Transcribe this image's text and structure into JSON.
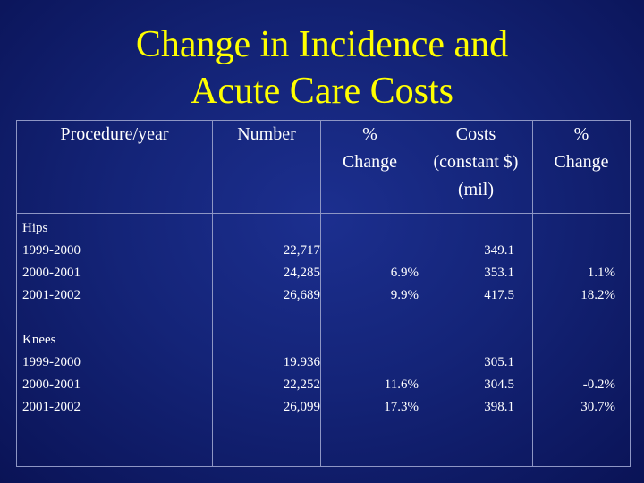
{
  "slide": {
    "title_line1": "Change in Incidence and",
    "title_line2": "Acute Care Costs"
  },
  "table": {
    "headers": {
      "procedure": "Procedure/year",
      "number": "Number",
      "pct_change_1_a": "%",
      "pct_change_1_b": "Change",
      "costs_a": "Costs",
      "costs_b": "(constant $)",
      "costs_c": "(mil)",
      "pct_change_2_a": "%",
      "pct_change_2_b": "Change"
    },
    "groups": [
      {
        "name": "Hips",
        "rows": [
          {
            "year": "1999-2000",
            "number": "22,717",
            "pct_number": "",
            "cost": "349.1",
            "pct_cost": ""
          },
          {
            "year": "2000-2001",
            "number": "24,285",
            "pct_number": "6.9%",
            "cost": "353.1",
            "pct_cost": "1.1%"
          },
          {
            "year": "2001-2002",
            "number": "26,689",
            "pct_number": "9.9%",
            "cost": "417.5",
            "pct_cost": "18.2%"
          }
        ]
      },
      {
        "name": "Knees",
        "rows": [
          {
            "year": "1999-2000",
            "number": "19.936",
            "pct_number": "",
            "cost": "305.1",
            "pct_cost": ""
          },
          {
            "year": "2000-2001",
            "number": "22,252",
            "pct_number": "11.6%",
            "cost": "304.5",
            "pct_cost": "-0.2%"
          },
          {
            "year": "2001-2002",
            "number": "26,099",
            "pct_number": "17.3%",
            "cost": "398.1",
            "pct_cost": "30.7%"
          }
        ]
      }
    ]
  }
}
